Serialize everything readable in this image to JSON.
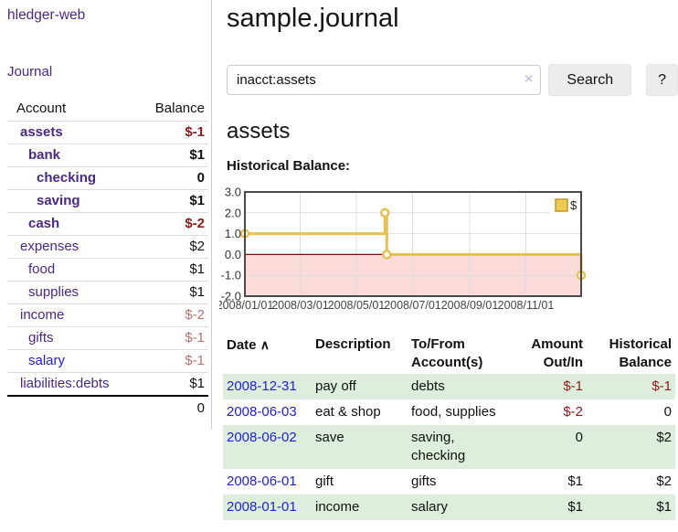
{
  "app": {
    "brand": "hledger-web",
    "nav_journal": "Journal"
  },
  "sidebar": {
    "headers": {
      "account": "Account",
      "balance": "Balance"
    },
    "accounts": [
      {
        "label": "assets",
        "depth": 1,
        "bold": true,
        "link": "purple",
        "balance": "$-1",
        "bal_style": "neg-strong"
      },
      {
        "label": "bank",
        "depth": 2,
        "bold": true,
        "link": "purple",
        "balance": "$1",
        "bal_style": "normal"
      },
      {
        "label": "checking",
        "depth": 3,
        "bold": true,
        "link": "purple",
        "balance": "0",
        "bal_style": "normal"
      },
      {
        "label": "saving",
        "depth": 3,
        "bold": true,
        "link": "purple",
        "balance": "$1",
        "bal_style": "normal"
      },
      {
        "label": "cash",
        "depth": 2,
        "bold": true,
        "link": "purple",
        "balance": "$-2",
        "bal_style": "neg-strong"
      },
      {
        "label": "expenses",
        "depth": 1,
        "bold": false,
        "link": "purple",
        "balance": "$2",
        "bal_style": "normal"
      },
      {
        "label": "food",
        "depth": 2,
        "bold": false,
        "link": "purple",
        "balance": "$1",
        "bal_style": "normal"
      },
      {
        "label": "supplies",
        "depth": 2,
        "bold": false,
        "link": "purple",
        "balance": "$1",
        "bal_style": "normal"
      },
      {
        "label": "income",
        "depth": 1,
        "bold": false,
        "link": "purple",
        "balance": "$-2",
        "bal_style": "neg-muted"
      },
      {
        "label": "gifts",
        "depth": 2,
        "bold": false,
        "link": "purple",
        "balance": "$-1",
        "bal_style": "neg-muted"
      },
      {
        "label": "salary",
        "depth": 2,
        "bold": false,
        "link": "blue",
        "balance": "$-1",
        "bal_style": "neg-muted"
      },
      {
        "label": "liabilities:debts",
        "depth": 1,
        "bold": false,
        "link": "purple",
        "balance": "$1",
        "bal_style": "normal"
      }
    ],
    "total": "0"
  },
  "header": {
    "title": "sample.journal"
  },
  "search": {
    "value": "inacct:assets",
    "clear_icon": "×",
    "button_label": "Search",
    "help_label": "?"
  },
  "account_page": {
    "heading": "assets",
    "chart_label": "Historical Balance:"
  },
  "chart_data": {
    "type": "line",
    "title": "Historical Balance",
    "series": [
      {
        "name": "$",
        "step": true,
        "points": [
          {
            "x": "2008-01-01",
            "y": 1
          },
          {
            "x": "2008-06-01",
            "y": 2
          },
          {
            "x": "2008-06-03",
            "y": 0
          },
          {
            "x": "2008-12-31",
            "y": -1
          }
        ]
      }
    ],
    "x_range": [
      "2008-01-01",
      "2008-12-31"
    ],
    "ylim": [
      -2,
      3
    ],
    "y_ticks": [
      "3.0",
      "2.0",
      "1.0",
      "0.0",
      "-1.0",
      "-2.0"
    ],
    "x_ticks": [
      "2008/01/01",
      "2008/03/01",
      "2008/05/01",
      "2008/07/01",
      "2008/09/01",
      "2008/11/01"
    ],
    "legend": {
      "label": "$",
      "position": "top-right"
    },
    "grid": true,
    "colors": {
      "line": "#e6c052",
      "legend_fill": "#ecc94f",
      "legend_border": "#bb9a30",
      "negative_fill": "#fbdada",
      "zero_line": "#7a0f0f",
      "border": "#4a4a4a",
      "gridline": "#ddd"
    }
  },
  "register_table": {
    "headers": [
      "Date",
      "Description",
      "To/From Account(s)",
      "Amount Out/In",
      "Historical Balance"
    ],
    "sort_arrow": "∧",
    "rows": [
      {
        "date": "2008-12-31",
        "description": "pay off",
        "accounts": "debts",
        "amount": "$-1",
        "amount_neg": true,
        "balance": "$-1",
        "balance_neg": true
      },
      {
        "date": "2008-06-03",
        "description": "eat & shop",
        "accounts": "food, supplies",
        "amount": "$-2",
        "amount_neg": true,
        "balance": "0",
        "balance_neg": false
      },
      {
        "date": "2008-06-02",
        "description": "save",
        "accounts": "saving, checking",
        "amount": "0",
        "amount_neg": false,
        "balance": "$2",
        "balance_neg": false
      },
      {
        "date": "2008-06-01",
        "description": "gift",
        "accounts": "gifts",
        "amount": "$1",
        "amount_neg": false,
        "balance": "$2",
        "balance_neg": false
      },
      {
        "date": "2008-01-01",
        "description": "income",
        "accounts": "salary",
        "amount": "$1",
        "amount_neg": false,
        "balance": "$1",
        "balance_neg": false
      }
    ]
  }
}
